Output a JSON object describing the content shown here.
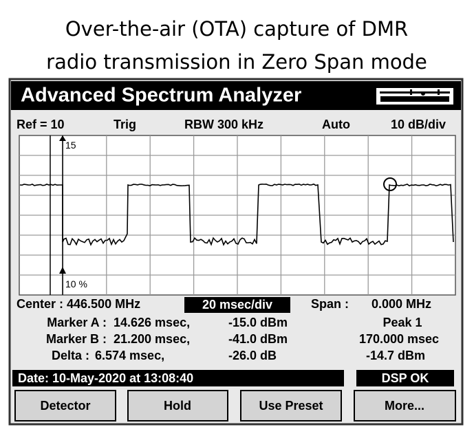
{
  "caption": [
    "Over-the-air (OTA) capture of DMR",
    "radio transmission in Zero Span mode"
  ],
  "title": "Advanced Spectrum Analyzer",
  "header": {
    "ref": "Ref = 10",
    "trig": "Trig",
    "rbw": "RBW 300 kHz",
    "auto": "Auto",
    "scale": "10 dB/div"
  },
  "plot": {
    "top_label": "15",
    "bottom_label": "10 %"
  },
  "info": {
    "center": "Center : 446.500 MHz",
    "sweep": "20 msec/div",
    "span_label": "Span :",
    "span": "0.000 MHz"
  },
  "markers": [
    {
      "label": "Marker A :",
      "time": "14.626 msec,",
      "level": "-15.0 dBm"
    },
    {
      "label": "Marker B :",
      "time": "21.200 msec,",
      "level": "-41.0 dBm"
    },
    {
      "label": "Delta :",
      "time": "6.574 msec,",
      "level": "-26.0 dB"
    }
  ],
  "peak": {
    "label": "Peak 1",
    "time": "170.000 msec",
    "level": "-14.7 dBm"
  },
  "status": {
    "date": "Date: 10-May-2020 at 13:08:40",
    "dsp": "DSP OK"
  },
  "buttons": [
    "Detector",
    "Hold",
    "Use Preset",
    "More..."
  ]
}
